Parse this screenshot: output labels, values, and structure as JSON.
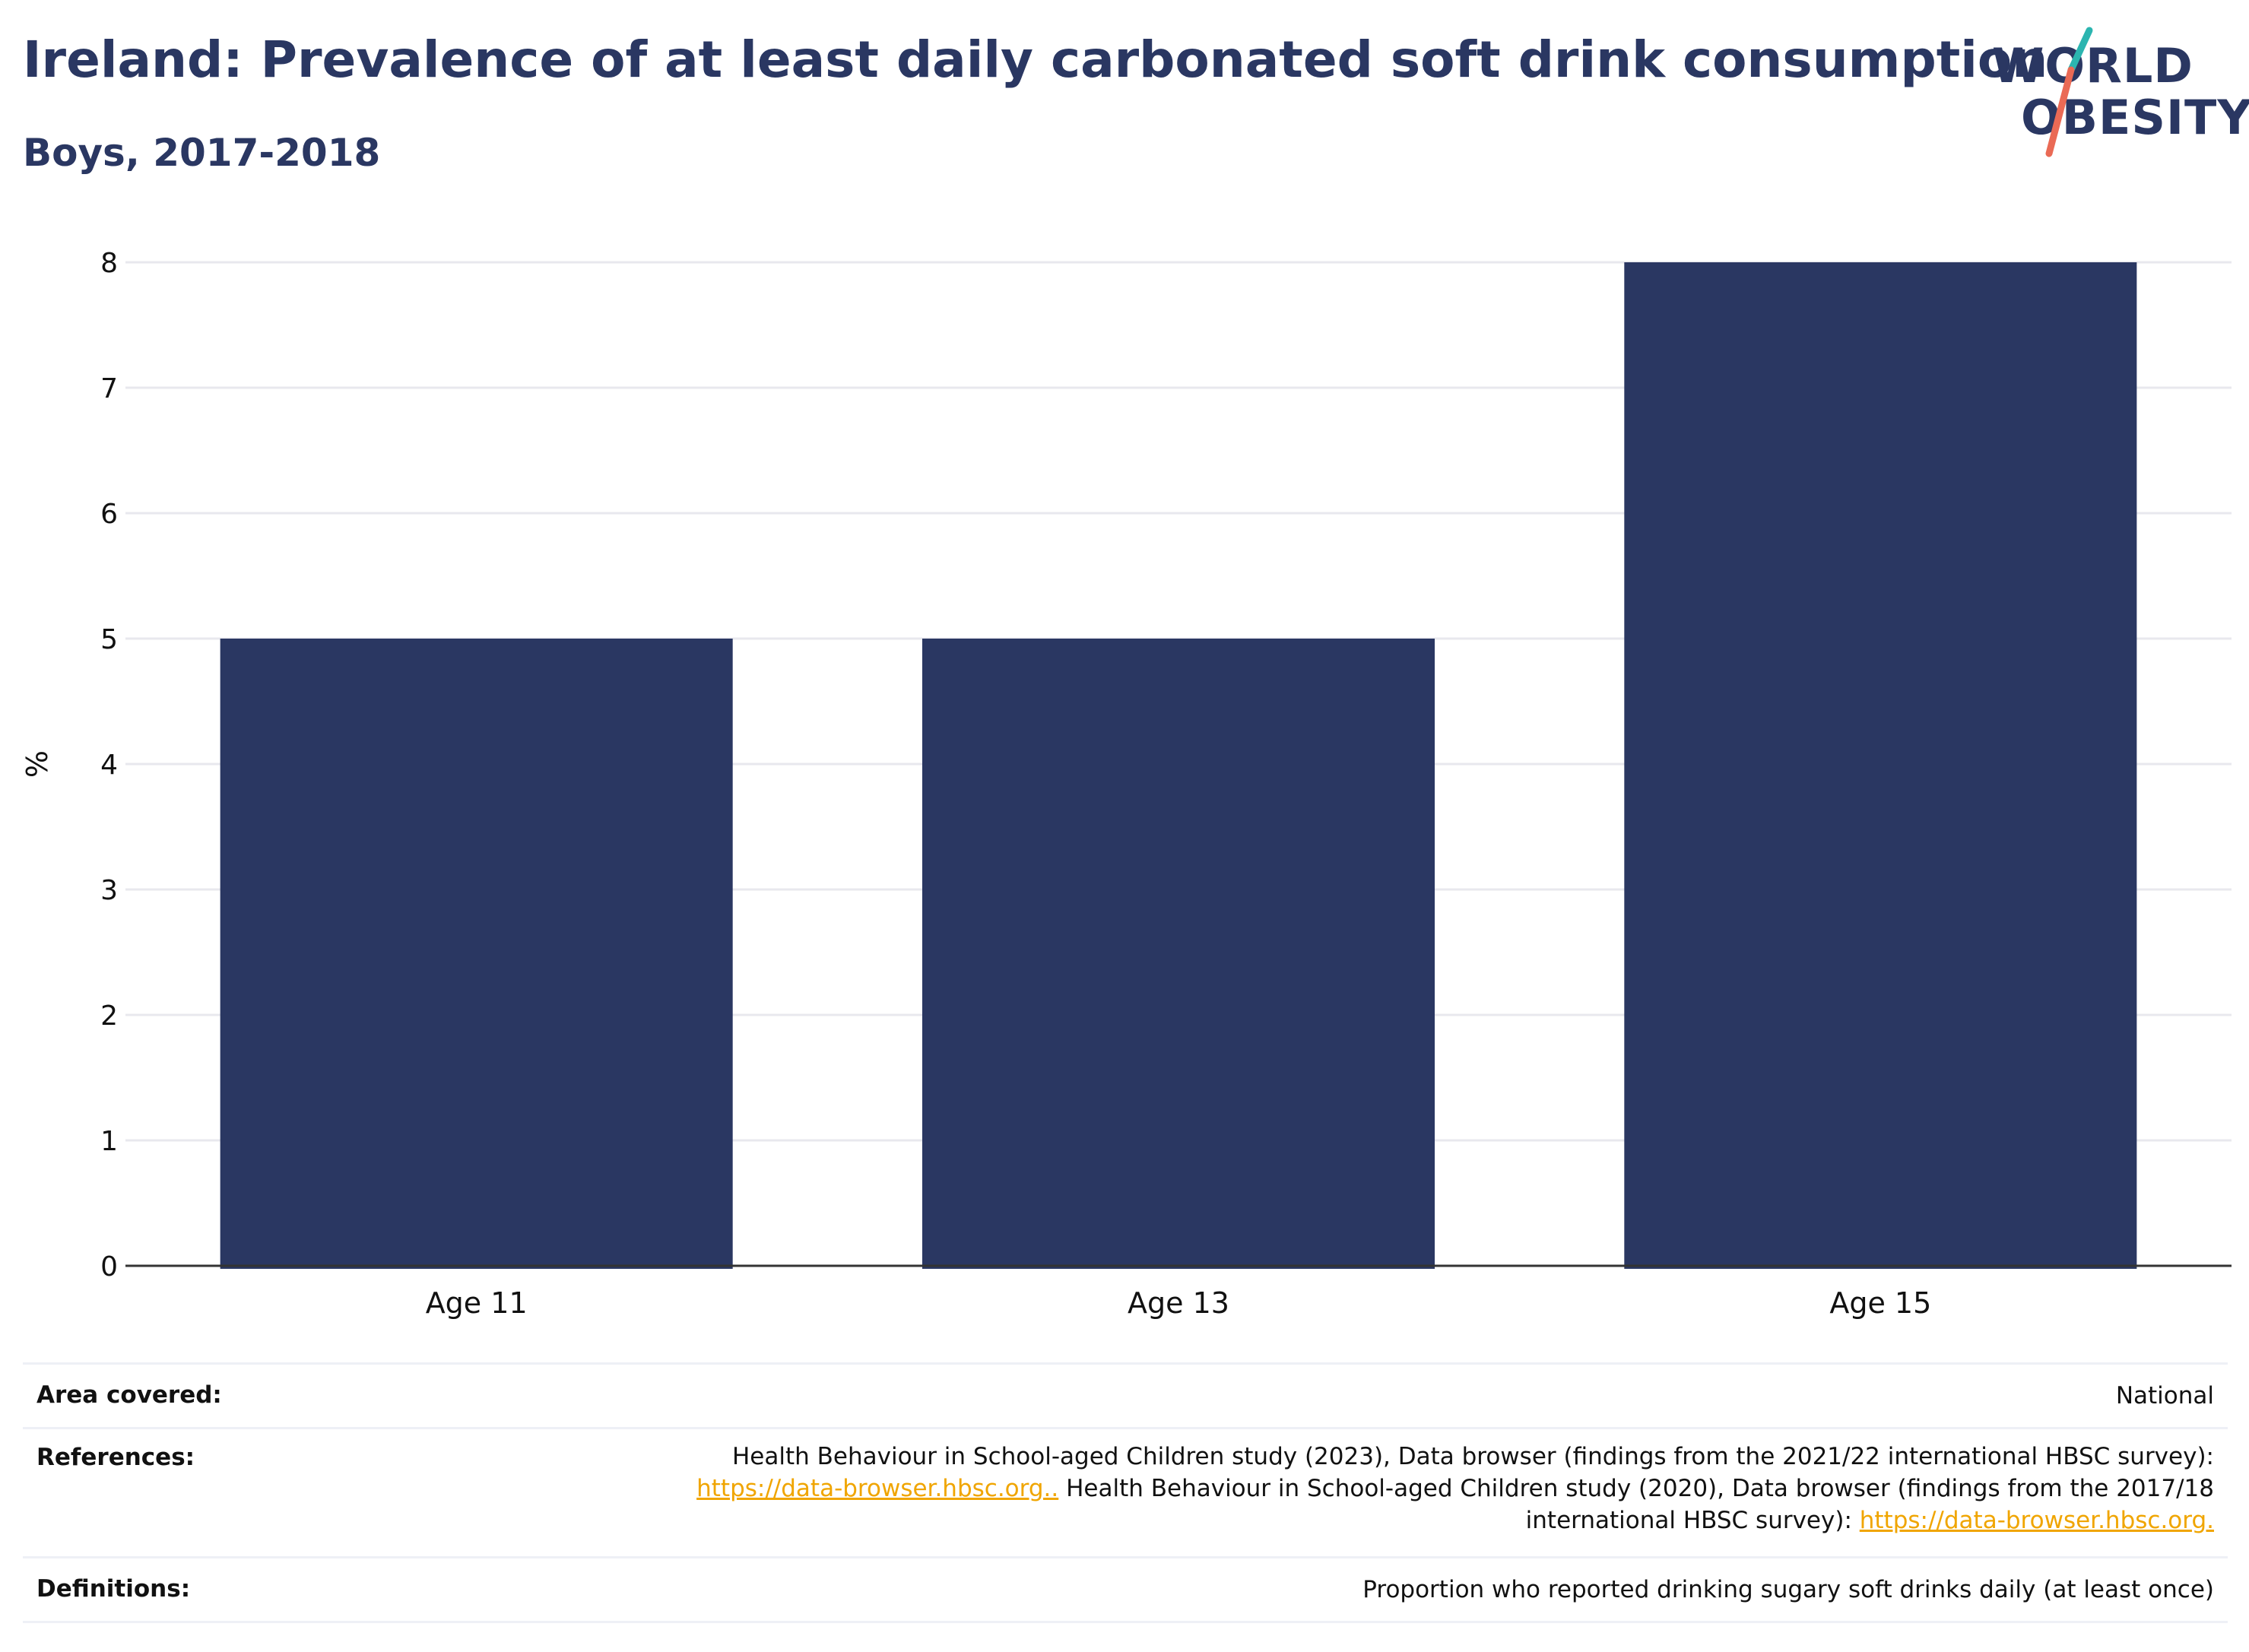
{
  "header": {
    "title": "Ireland: Prevalence of at least daily carbonated soft drink consumption",
    "subtitle": "Boys, 2017-2018"
  },
  "logo": {
    "line1": "WORLD",
    "line2": "OBESITY",
    "accent_teal": "#2bb5b0",
    "accent_coral": "#ea6a55"
  },
  "chart_data": {
    "type": "bar",
    "categories": [
      "Age 11",
      "Age 13",
      "Age 15"
    ],
    "values": [
      5,
      5,
      8
    ],
    "ylabel": "%",
    "ylim": [
      0,
      8
    ],
    "yticks": [
      0,
      1,
      2,
      3,
      4,
      5,
      6,
      7,
      8
    ],
    "grid": true,
    "bar_color": "#2a3762"
  },
  "meta": {
    "area_label": "Area covered:",
    "area_value": "National",
    "references_label": "References:",
    "references_text1": "Health Behaviour in School-aged Children study (2023), Data browser (findings from the 2021/22 international HBSC survey):",
    "references_link1": "https://data-browser.hbsc.org..",
    "references_text2": " Health Behaviour in School-aged Children study (2020), Data browser (findings from the 2017/18",
    "references_text3": "international HBSC survey): ",
    "references_link2": "https://data-browser.hbsc.org.",
    "definitions_label": "Definitions:",
    "definitions_value": "Proportion who reported drinking sugary soft drinks daily (at least once)"
  }
}
